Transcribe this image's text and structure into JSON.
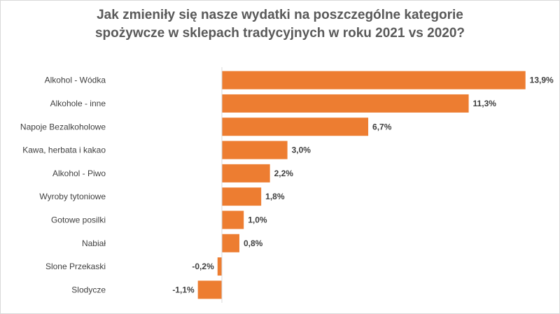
{
  "chart_data": {
    "type": "bar",
    "orientation": "horizontal",
    "title_lines": [
      "Jak zmieniły się nasze wydatki na poszczególne kategorie",
      "spożywcze w sklepach tradycyjnych w roku 2021 vs 2020?"
    ],
    "categories": [
      "Alkohol - Wódka",
      "Alkohole - inne",
      "Napoje Bezalkoholowe",
      "Kawa, herbata i kakao",
      "Alkohol - Piwo",
      "Wyroby tytoniowe",
      "Gotowe posilki",
      "Nabiał",
      "Slone Przekaski",
      "Slodycze"
    ],
    "values": [
      13.9,
      11.3,
      6.7,
      3.0,
      2.2,
      1.8,
      1.0,
      0.8,
      -0.2,
      -1.1
    ],
    "value_labels": [
      "13,9%",
      "11,3%",
      "6,7%",
      "3,0%",
      "2,2%",
      "1,8%",
      "1,0%",
      "0,8%",
      "-0,2%",
      "-1,1%"
    ],
    "unit": "%",
    "bar_color": "#ED7D31",
    "axis_color": "#D9D9D9",
    "legend": "none",
    "grid": false
  }
}
